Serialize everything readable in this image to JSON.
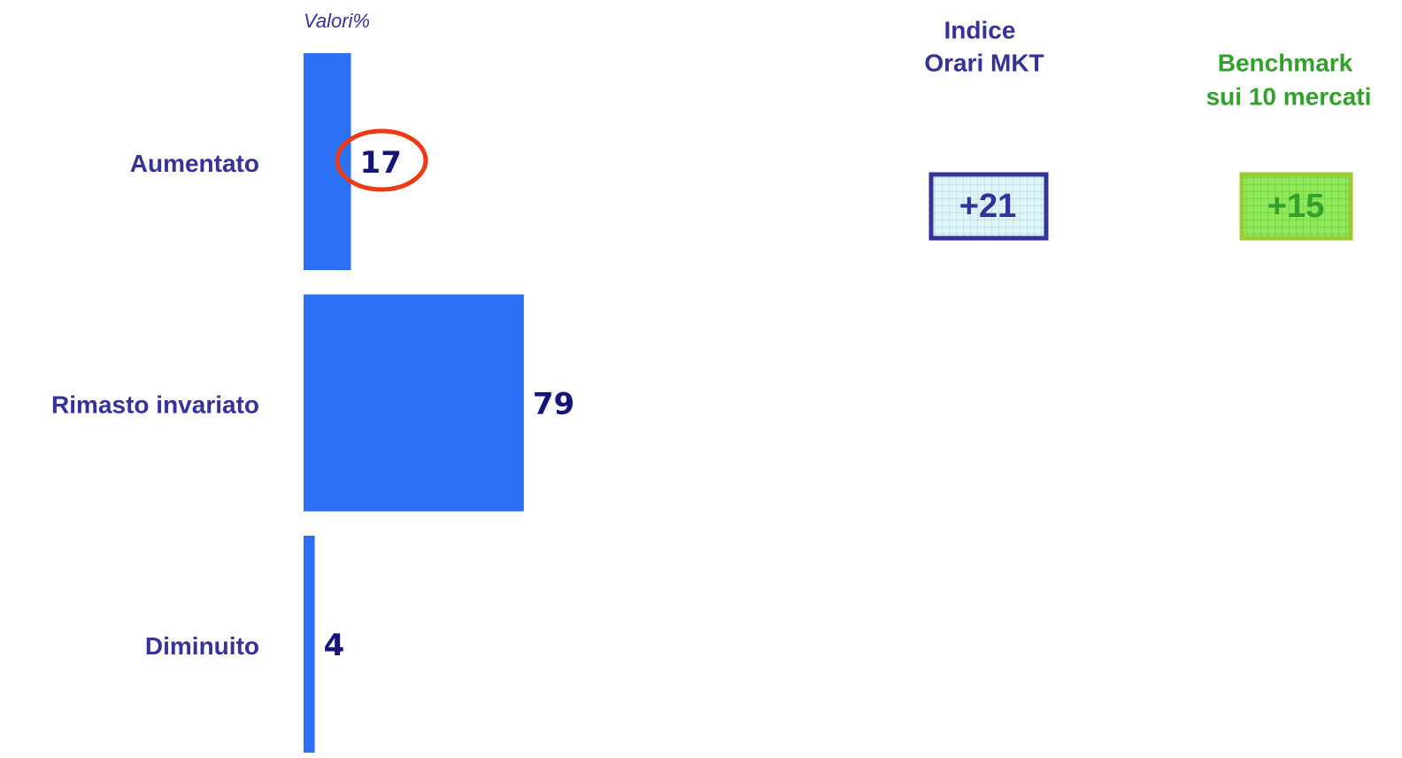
{
  "chart_data": {
    "type": "bar",
    "orientation": "horizontal",
    "axis_label": "Valori%",
    "categories": [
      "Aumentato",
      "Rimasto invariato",
      "Diminuito"
    ],
    "values": [
      17,
      79,
      4
    ],
    "color": "#2b6ff5",
    "xlim": [
      0,
      100
    ],
    "indices": [
      {
        "title": [
          "Indice",
          "Orari MKT"
        ],
        "label": "+21"
      },
      {
        "title": [
          "Benchmark",
          "sui 10 mercati"
        ],
        "label": "+15"
      }
    ]
  }
}
